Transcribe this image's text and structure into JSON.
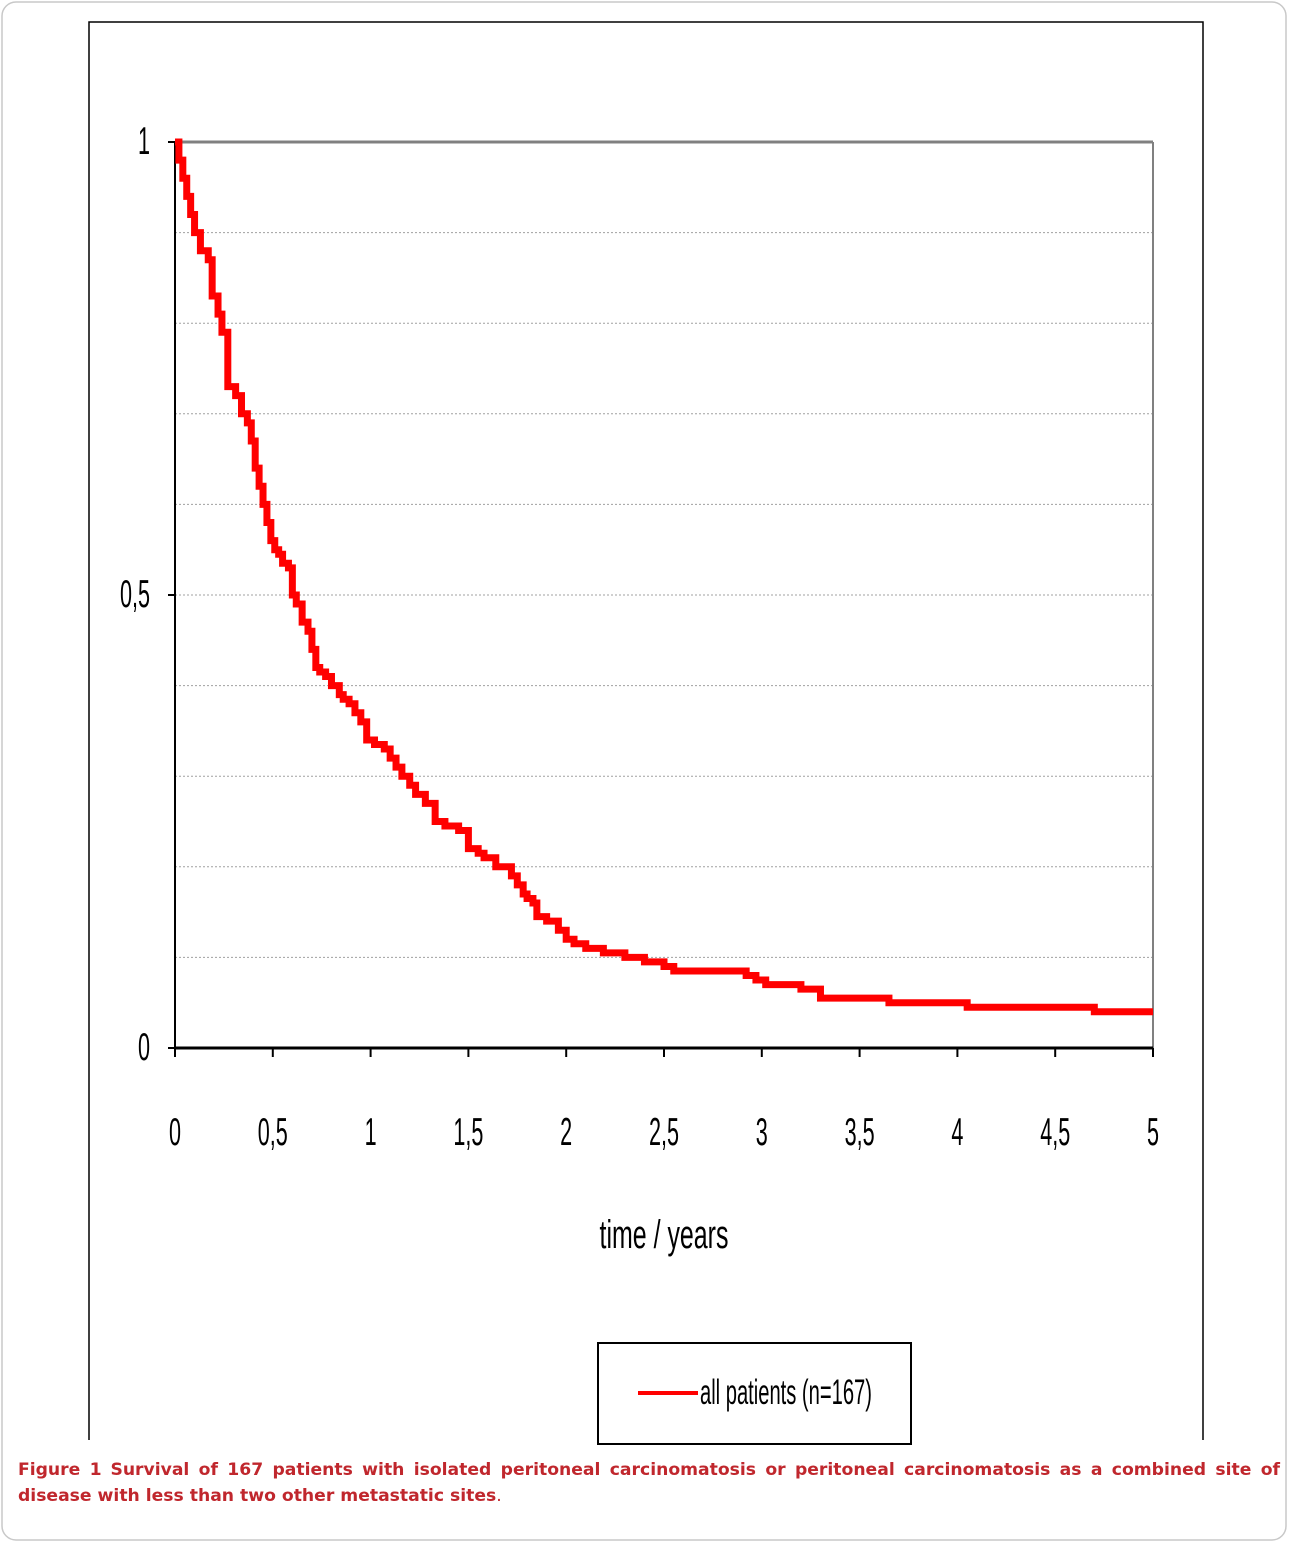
{
  "figure": {
    "caption_label": "Figure 1",
    "caption_text": "Survival of 167 patients with isolated peritoneal carcinomatosis or peritoneal carcinomatosis as a combined site of disease with less than two other metastatic sites",
    "caption_end": "."
  },
  "chart_data": {
    "type": "line",
    "title": "",
    "xlabel": "time / years",
    "ylabel": "",
    "xlim": [
      0,
      5
    ],
    "ylim": [
      0,
      1
    ],
    "x_ticks": [
      "0",
      "0,5",
      "1",
      "1,5",
      "2",
      "2,5",
      "3",
      "3,5",
      "4",
      "4,5",
      "5"
    ],
    "y_ticks": [
      "0",
      "0,5",
      "1"
    ],
    "grid": "horizontal dotted every 0.1",
    "legend_position": "bottom-center",
    "colors": {
      "series": "#ff0000",
      "plot_border": "#808080",
      "grid": "#a0a0a0"
    },
    "series": [
      {
        "name": "all patients (n=167)",
        "step": true,
        "x": [
          0,
          0.02,
          0.04,
          0.06,
          0.08,
          0.1,
          0.13,
          0.17,
          0.19,
          0.22,
          0.24,
          0.27,
          0.31,
          0.34,
          0.37,
          0.39,
          0.41,
          0.43,
          0.45,
          0.47,
          0.49,
          0.51,
          0.53,
          0.55,
          0.58,
          0.6,
          0.62,
          0.65,
          0.68,
          0.7,
          0.72,
          0.74,
          0.77,
          0.8,
          0.84,
          0.86,
          0.89,
          0.92,
          0.95,
          0.98,
          1.02,
          1.07,
          1.1,
          1.13,
          1.16,
          1.2,
          1.23,
          1.28,
          1.33,
          1.38,
          1.45,
          1.5,
          1.55,
          1.58,
          1.64,
          1.72,
          1.75,
          1.78,
          1.8,
          1.83,
          1.85,
          1.9,
          1.96,
          2.0,
          2.04,
          2.1,
          2.19,
          2.3,
          2.4,
          2.5,
          2.55,
          2.75,
          2.9,
          2.92,
          2.97,
          3.02,
          3.2,
          3.3,
          3.6,
          3.65,
          4.0,
          4.05,
          4.65,
          4.7,
          5.0
        ],
        "values": [
          1.0,
          0.98,
          0.96,
          0.94,
          0.92,
          0.9,
          0.88,
          0.87,
          0.83,
          0.81,
          0.79,
          0.73,
          0.72,
          0.7,
          0.69,
          0.67,
          0.64,
          0.62,
          0.6,
          0.58,
          0.56,
          0.55,
          0.545,
          0.535,
          0.53,
          0.5,
          0.49,
          0.47,
          0.46,
          0.44,
          0.42,
          0.415,
          0.41,
          0.4,
          0.39,
          0.385,
          0.38,
          0.37,
          0.36,
          0.34,
          0.335,
          0.33,
          0.32,
          0.31,
          0.3,
          0.29,
          0.28,
          0.27,
          0.25,
          0.245,
          0.24,
          0.22,
          0.215,
          0.21,
          0.2,
          0.19,
          0.18,
          0.17,
          0.165,
          0.16,
          0.145,
          0.14,
          0.13,
          0.12,
          0.115,
          0.11,
          0.105,
          0.1,
          0.095,
          0.09,
          0.085,
          0.085,
          0.085,
          0.08,
          0.075,
          0.07,
          0.065,
          0.055,
          0.055,
          0.05,
          0.05,
          0.045,
          0.045,
          0.04,
          0.04
        ]
      }
    ]
  }
}
